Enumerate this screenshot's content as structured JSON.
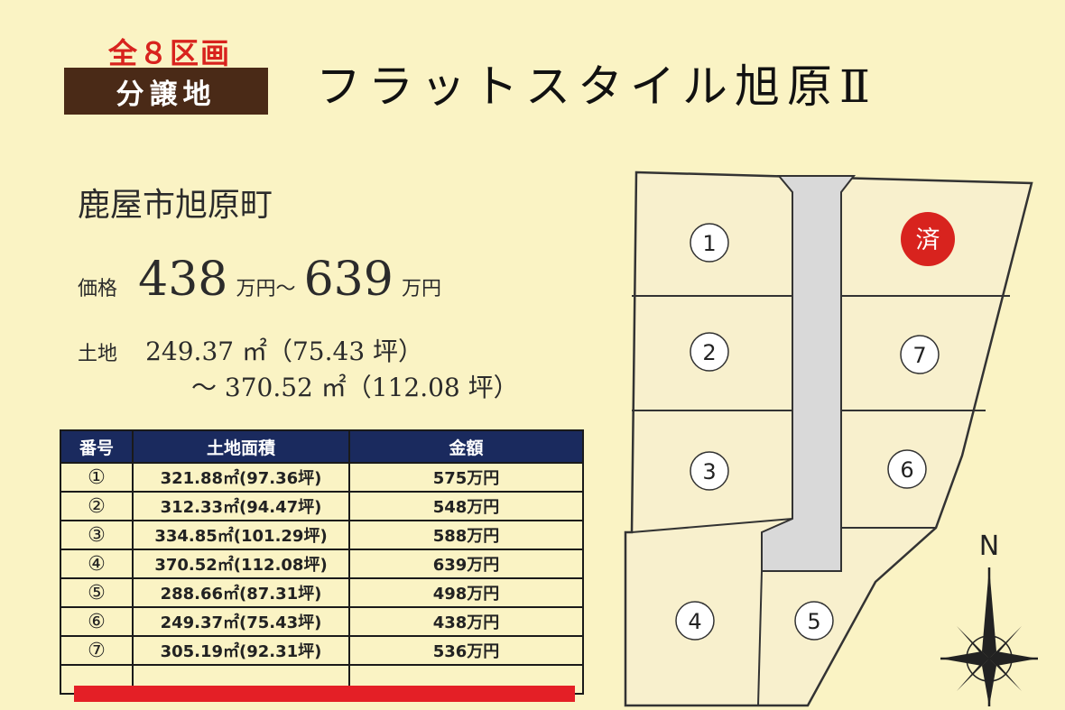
{
  "header": {
    "badge_top": "全８区画",
    "badge_label": "分譲地",
    "title": "フラットスタイル旭原Ⅱ"
  },
  "info": {
    "address": "鹿屋市旭原町",
    "price_label": "価格",
    "price_min": "438",
    "price_unit_1": "万円～",
    "price_max": "639",
    "price_unit_2": "万円",
    "land_label": "土地",
    "land_line1": "249.37 ㎡（75.43 坪）",
    "land_line2": "～ 370.52 ㎡（112.08 坪）"
  },
  "table": {
    "headers": [
      "番号",
      "土地面積",
      "金額"
    ],
    "rows": [
      {
        "no": "①",
        "area": "321.88㎡(97.36坪)",
        "price": "575万円"
      },
      {
        "no": "②",
        "area": "312.33㎡(94.47坪)",
        "price": "548万円"
      },
      {
        "no": "③",
        "area": "334.85㎡(101.29坪)",
        "price": "588万円"
      },
      {
        "no": "④",
        "area": "370.52㎡(112.08坪)",
        "price": "639万円"
      },
      {
        "no": "⑤",
        "area": "288.66㎡(87.31坪)",
        "price": "498万円"
      },
      {
        "no": "⑥",
        "area": "249.37㎡(75.43坪)",
        "price": "438万円"
      },
      {
        "no": "⑦",
        "area": "305.19㎡(92.31坪)",
        "price": "536万円"
      }
    ]
  },
  "map": {
    "lots": [
      "1",
      "2",
      "3",
      "4",
      "5",
      "6",
      "7"
    ],
    "sold_label": "済",
    "north_label": "N"
  },
  "colors": {
    "background": "#faf3c4",
    "badge_red": "#d8231e",
    "badge_brown": "#4a2a17",
    "table_header": "#1a2a5e",
    "sold_red": "#e41f26",
    "road_gray": "#d9d9d9",
    "lot_fill": "#f8f0cd"
  }
}
